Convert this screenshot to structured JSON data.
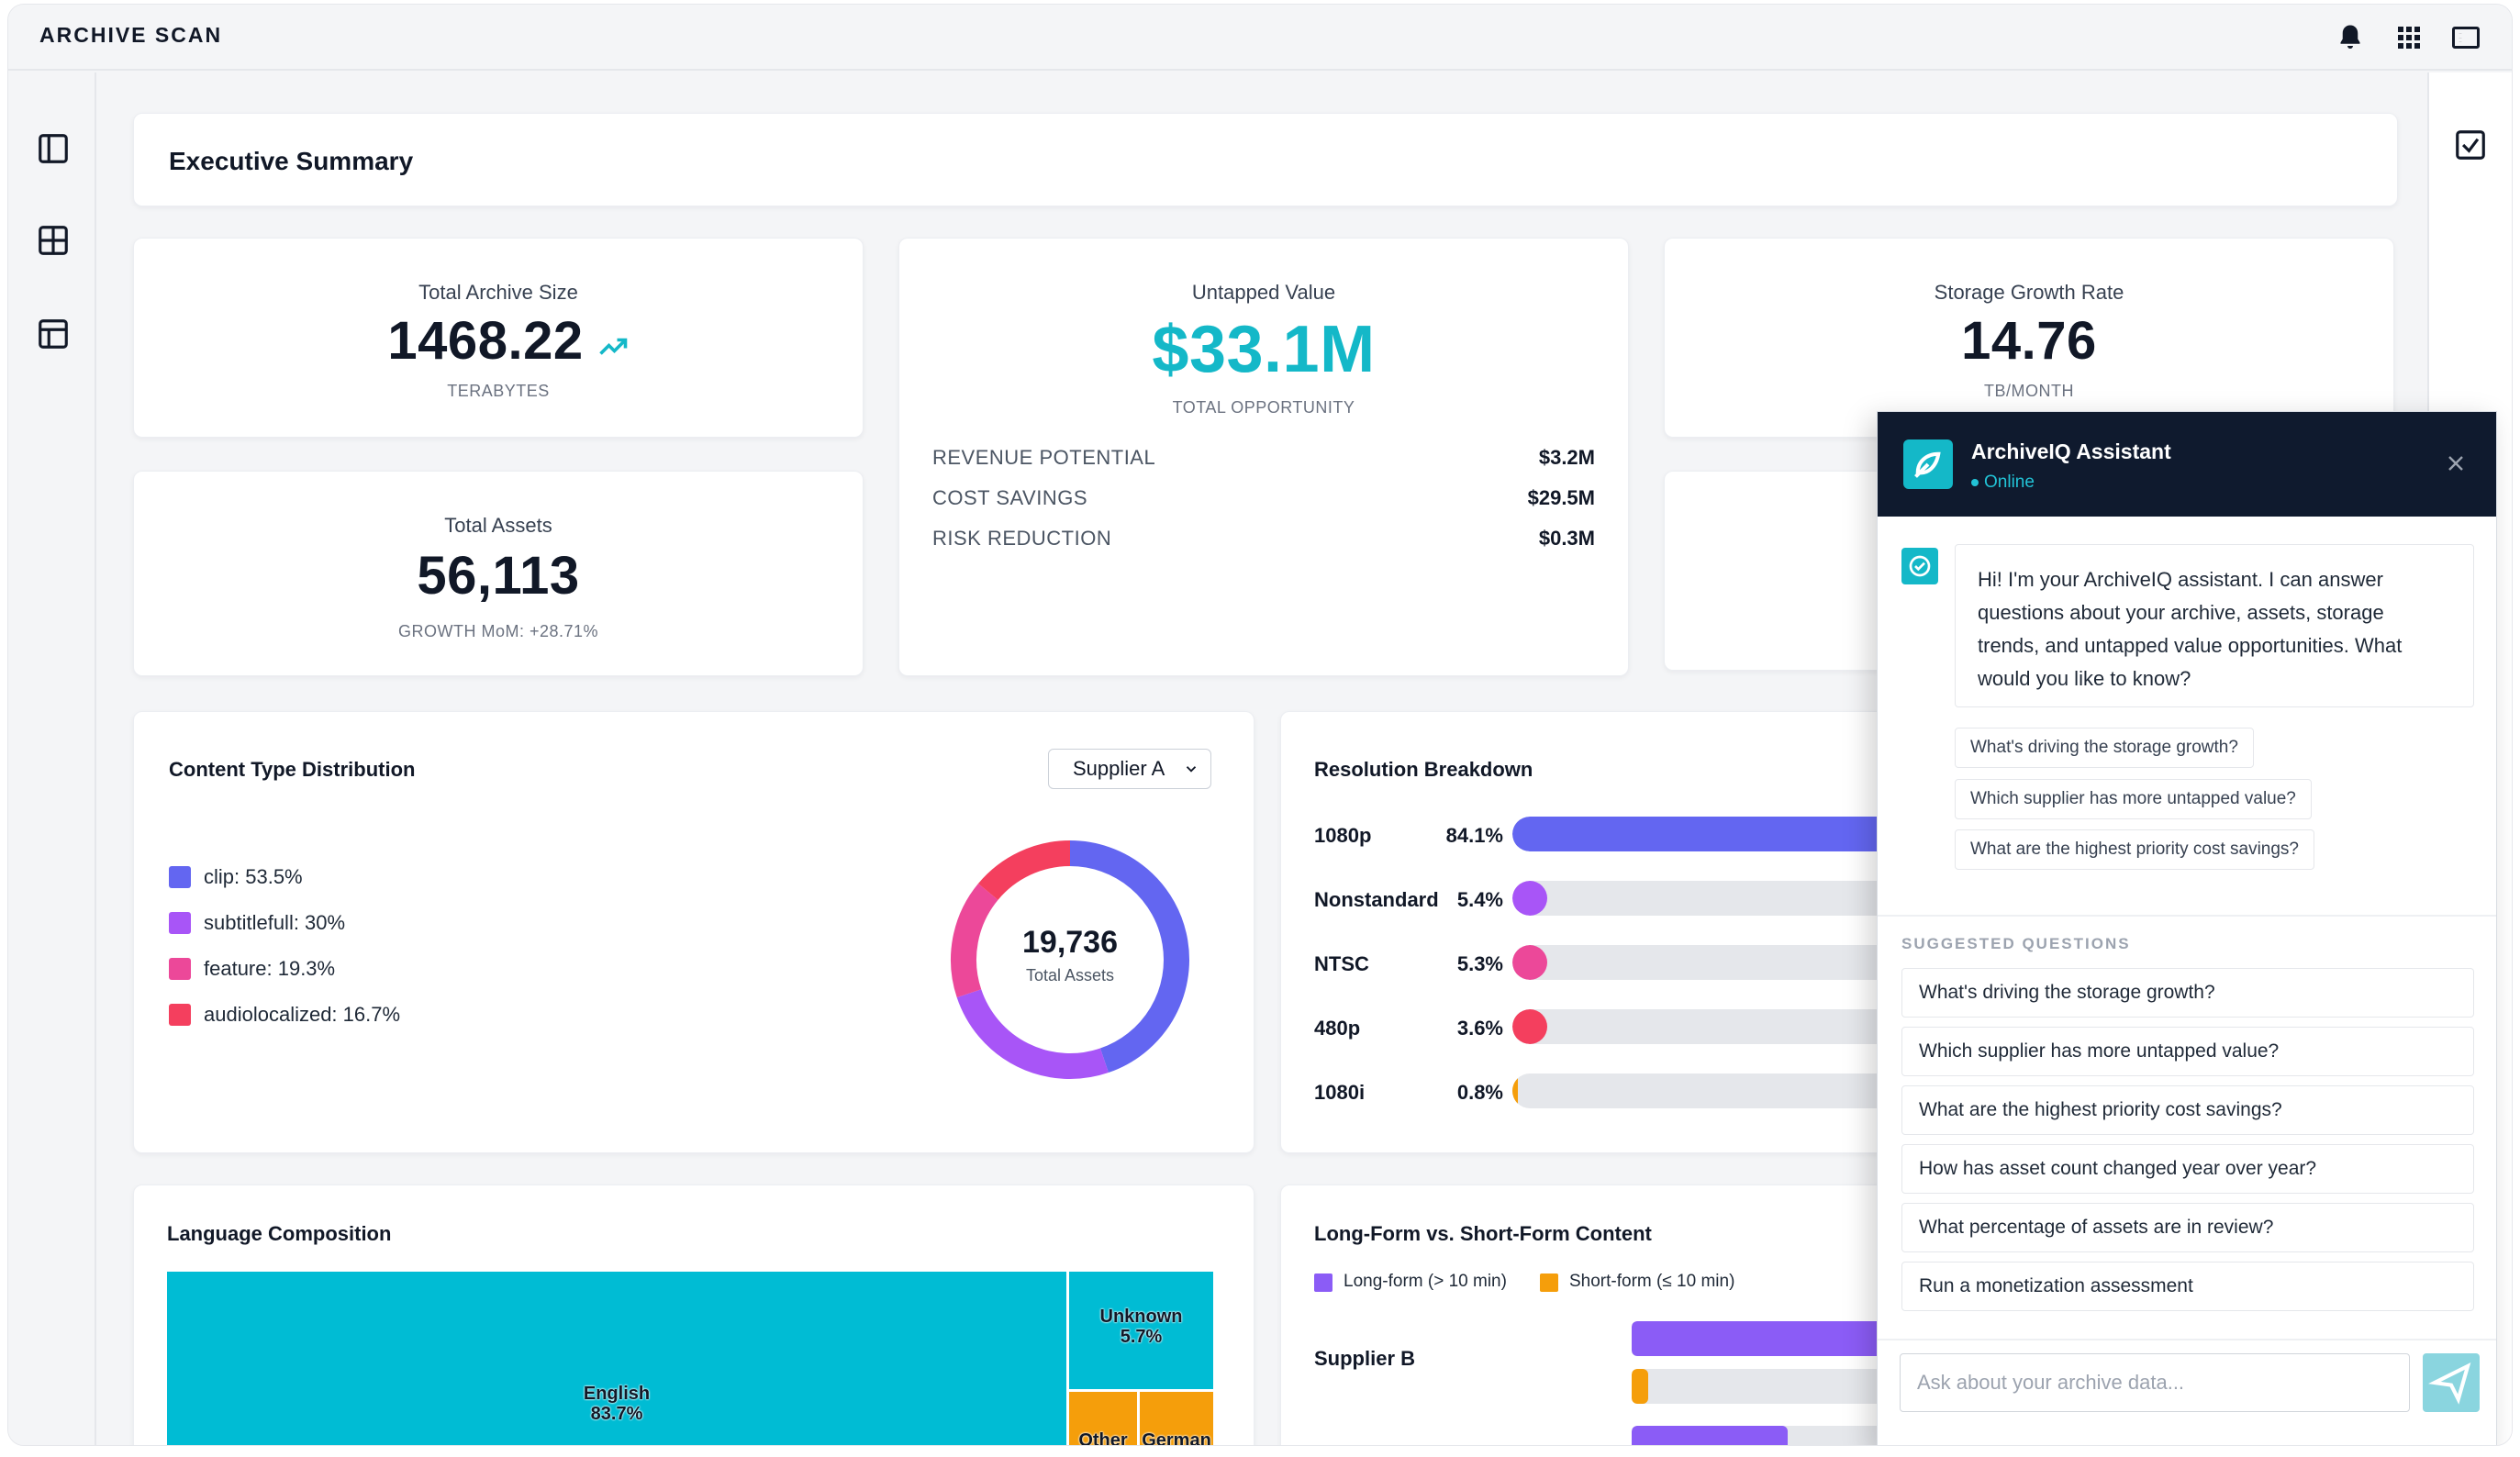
{
  "app": {
    "brand": "ARCHIVE SCAN"
  },
  "page": {
    "title": "Executive Summary"
  },
  "kpis": {
    "total_archive_size": {
      "label": "Total Archive Size",
      "value": "1468.22",
      "unit": "TERABYTES"
    },
    "untapped_value": {
      "label": "Untapped Value",
      "value": "$33.1M",
      "unit": "TOTAL OPPORTUNITY",
      "rows": [
        {
          "label": "REVENUE POTENTIAL",
          "value": "$3.2M"
        },
        {
          "label": "COST SAVINGS",
          "value": "$29.5M"
        },
        {
          "label": "RISK REDUCTION",
          "value": "$0.3M"
        }
      ]
    },
    "storage_growth": {
      "label": "Storage Growth Rate",
      "value": "14.76",
      "unit": "TB/MONTH"
    },
    "total_assets": {
      "label": "Total Assets",
      "value": "56,113",
      "sub": "GROWTH MoM: +28.71%"
    }
  },
  "content_type": {
    "title": "Content Type Distribution",
    "supplier_selected": "Supplier A",
    "center_value": "19,736",
    "center_label": "Total Assets",
    "legend": [
      {
        "label": "clip: 53.5%",
        "color": "#6366f1",
        "value": 53.5
      },
      {
        "label": "subtitlefull: 30%",
        "color": "#a855f7",
        "value": 30
      },
      {
        "label": "feature: 19.3%",
        "color": "#ec4899",
        "value": 19.3
      },
      {
        "label": "audiolocalized: 16.7%",
        "color": "#f43f5e",
        "value": 16.7
      }
    ]
  },
  "resolution": {
    "title": "Resolution Breakdown",
    "rows": [
      {
        "name": "1080p",
        "pct": "84.1%",
        "value": 84.1,
        "color": "#6366f1"
      },
      {
        "name": "Nonstandard",
        "pct": "5.4%",
        "value": 5.4,
        "color": "#a855f7"
      },
      {
        "name": "NTSC",
        "pct": "5.3%",
        "value": 5.3,
        "color": "#ec4899"
      },
      {
        "name": "480p",
        "pct": "3.6%",
        "value": 3.6,
        "color": "#f43f5e"
      },
      {
        "name": "1080i",
        "pct": "0.8%",
        "value": 0.8,
        "color": "#f59e0b"
      }
    ]
  },
  "language": {
    "title": "Language Composition",
    "items": [
      {
        "name": "English",
        "pct": "83.7%"
      },
      {
        "name": "Unknown",
        "pct": "5.7%"
      },
      {
        "name": "Other",
        "pct": ""
      },
      {
        "name": "German",
        "pct": ""
      }
    ]
  },
  "longform": {
    "title": "Long-Form vs. Short-Form Content",
    "legend_long": "Long-form (> 10 min)",
    "legend_short": "Short-form (≤ 10 min)",
    "supplier_b": "Supplier B",
    "colors": {
      "long": "#8b5cf6",
      "short": "#f59e0b"
    }
  },
  "assistant": {
    "title": "ArchiveIQ Assistant",
    "status": "Online",
    "greeting": "Hi! I'm your ArchiveIQ assistant. I can answer questions about your archive, assets, storage trends, and untapped value opportunities. What would you like to know?",
    "chips": [
      "What's driving the storage growth?",
      "Which supplier has more untapped value?",
      "What are the highest priority cost savings?"
    ],
    "suggested_title": "SUGGESTED QUESTIONS",
    "suggested": [
      "What's driving the storage growth?",
      "Which supplier has more untapped value?",
      "What are the highest priority cost savings?",
      "How has asset count changed year over year?",
      "What percentage of assets are in review?",
      "Run a monetization assessment"
    ],
    "input_placeholder": "Ask about your archive data..."
  },
  "colors": {
    "accent": "#14b8c8",
    "dark": "#0f1a2e"
  }
}
